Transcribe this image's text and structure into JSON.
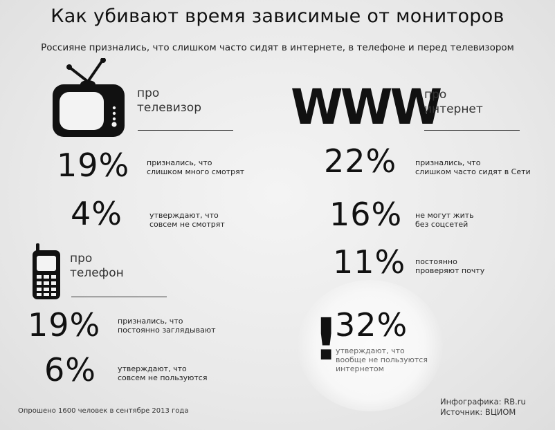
{
  "header": {
    "title": "Как убивают время зависимые от мониторов",
    "subtitle": "Россияне признались, что слишком часто сидят в интернете, в телефоне и перед телевизором"
  },
  "tv": {
    "label": "про\nтелевизор",
    "stats": [
      {
        "value": "19%",
        "text": "признались, что\nслишком много смотрят"
      },
      {
        "value": "4%",
        "text": "утверждают, что\nсовсем не смотрят"
      }
    ]
  },
  "internet": {
    "logo": "WWW",
    "label": "про\nинтернет",
    "stats": [
      {
        "value": "22%",
        "text": "признались, что\nслишком часто сидят в Сети"
      },
      {
        "value": "16%",
        "text": "не могут жить\nбез соцсетей"
      },
      {
        "value": "11%",
        "text": "постоянно\nпроверяют почту"
      },
      {
        "value": "32%",
        "text": "утверждают, что\nвообще не пользуются\nинтернетом"
      }
    ],
    "exclamation": "!"
  },
  "phone": {
    "label": "про\nтелефон",
    "stats": [
      {
        "value": "19%",
        "text": "признались, что\nпостоянно заглядывают"
      },
      {
        "value": "6%",
        "text": "утверждают, что\nсовсем не пользуются"
      }
    ]
  },
  "footer": {
    "survey": "Опрошено 1600 человек в сентябре 2013 года",
    "infographic": "Инфографика: RB.ru",
    "source": "Источник: ВЦИОМ"
  },
  "icons": [
    "tv-icon",
    "mobile-phone-icon"
  ]
}
